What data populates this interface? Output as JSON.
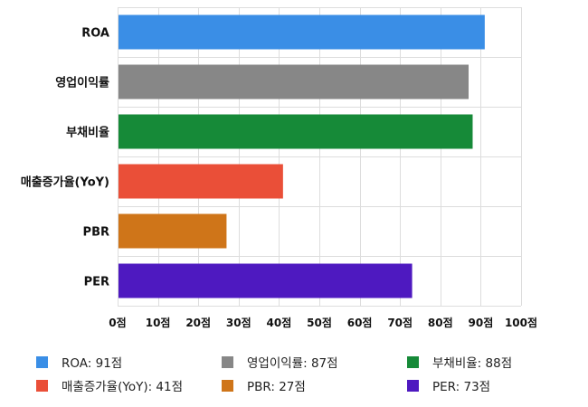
{
  "chart_data": {
    "type": "bar",
    "orientation": "horizontal",
    "categories": [
      "ROA",
      "영업이익률",
      "부채비율",
      "매출증가율(YoY)",
      "PBR",
      "PER"
    ],
    "values": [
      91,
      87,
      88,
      41,
      27,
      73
    ],
    "colors": [
      "#3a8ee6",
      "#878787",
      "#168a38",
      "#ea4f38",
      "#cf7519",
      "#4e19c0"
    ],
    "xlim": [
      0,
      100
    ],
    "x_ticks": [
      0,
      10,
      20,
      30,
      40,
      50,
      60,
      70,
      80,
      90,
      100
    ],
    "x_tick_labels": [
      "0점",
      "10점",
      "20점",
      "30점",
      "40점",
      "50점",
      "60점",
      "70점",
      "80점",
      "90점",
      "100점"
    ],
    "grid": true,
    "legend_position": "bottom",
    "legend": [
      {
        "label": "ROA: 91점",
        "color": "#3a8ee6"
      },
      {
        "label": "영업이익률: 87점",
        "color": "#878787"
      },
      {
        "label": "부채비율: 88점",
        "color": "#168a38"
      },
      {
        "label": "매출증가율(YoY): 41점",
        "color": "#ea4f38"
      },
      {
        "label": "PBR: 27점",
        "color": "#cf7519"
      },
      {
        "label": "PER: 73점",
        "color": "#4e19c0"
      }
    ]
  }
}
